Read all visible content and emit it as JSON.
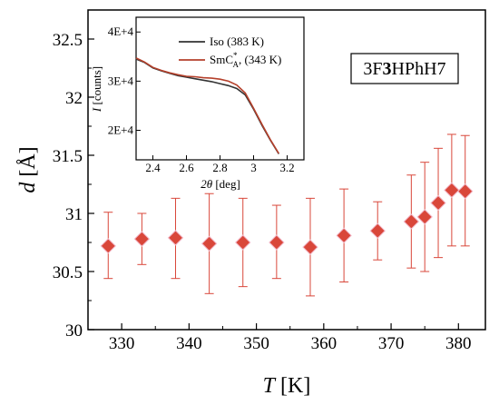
{
  "chart_data": [
    {
      "type": "scatter",
      "sample_label_prefix": "3F",
      "sample_label_bold": "3",
      "sample_label_suffix": "HPhH7",
      "xlabel_var": "T",
      "xlabel_unit": " [K]",
      "ylabel_var": "d",
      "ylabel_unit": " [Å]",
      "xlim": [
        325,
        384
      ],
      "ylim": [
        30.0,
        32.75
      ],
      "xticks": [
        "330",
        "340",
        "350",
        "360",
        "370",
        "380"
      ],
      "yticks": [
        "30",
        "30.5",
        "31",
        "31.5",
        "32",
        "32.5"
      ],
      "marker": "diamond",
      "color": "#d9473a",
      "points": [
        {
          "x": 328,
          "y": 30.72,
          "ylo": 30.44,
          "yhi": 31.01
        },
        {
          "x": 333,
          "y": 30.78,
          "ylo": 30.56,
          "yhi": 31.0
        },
        {
          "x": 338,
          "y": 30.79,
          "ylo": 30.44,
          "yhi": 31.13
        },
        {
          "x": 343,
          "y": 30.74,
          "ylo": 30.31,
          "yhi": 31.17
        },
        {
          "x": 348,
          "y": 30.75,
          "ylo": 30.37,
          "yhi": 31.13
        },
        {
          "x": 353,
          "y": 30.75,
          "ylo": 30.44,
          "yhi": 31.07
        },
        {
          "x": 358,
          "y": 30.71,
          "ylo": 30.29,
          "yhi": 31.13
        },
        {
          "x": 363,
          "y": 30.81,
          "ylo": 30.41,
          "yhi": 31.21
        },
        {
          "x": 368,
          "y": 30.85,
          "ylo": 30.6,
          "yhi": 31.1
        },
        {
          "x": 373,
          "y": 30.93,
          "ylo": 30.53,
          "yhi": 31.33
        },
        {
          "x": 375,
          "y": 30.97,
          "ylo": 30.5,
          "yhi": 31.44
        },
        {
          "x": 377,
          "y": 31.09,
          "ylo": 30.62,
          "yhi": 31.56
        },
        {
          "x": 379,
          "y": 31.2,
          "ylo": 30.72,
          "yhi": 31.68
        },
        {
          "x": 381,
          "y": 31.19,
          "ylo": 30.72,
          "yhi": 31.67
        }
      ]
    },
    {
      "type": "line",
      "inset": true,
      "xlabel_var": "2θ",
      "xlabel_unit": " [deg]",
      "ylabel_var": "I",
      "ylabel_unit": " [counts]",
      "xlim": [
        2.3,
        3.3
      ],
      "ylim": [
        14000,
        43000
      ],
      "xticks": [
        "2.4",
        "2.6",
        "2.8",
        "3",
        "3.2"
      ],
      "yticks": [
        "2E+4",
        "3E+4",
        "4E+4"
      ],
      "legend_position": "top-right",
      "series": [
        {
          "name_main": "Iso (383 K)",
          "color": "#333333",
          "x": [
            2.3,
            2.35,
            2.4,
            2.45,
            2.5,
            2.55,
            2.6,
            2.65,
            2.7,
            2.75,
            2.8,
            2.85,
            2.9,
            2.95,
            3.0,
            3.05,
            3.1,
            3.15
          ],
          "y": [
            34500,
            33800,
            32700,
            32100,
            31600,
            31100,
            30800,
            30500,
            30200,
            29900,
            29500,
            29100,
            28500,
            27200,
            24300,
            21000,
            18000,
            15200
          ]
        },
        {
          "name_main": "SmC",
          "name_sup": "*",
          "name_sub": "A",
          "name_rest": ", (343 K)",
          "color": "#b5402b",
          "x": [
            2.3,
            2.35,
            2.4,
            2.45,
            2.5,
            2.55,
            2.6,
            2.65,
            2.7,
            2.75,
            2.8,
            2.85,
            2.9,
            2.95,
            3.0,
            3.05,
            3.1,
            3.15
          ],
          "y": [
            34700,
            33900,
            32800,
            32200,
            31700,
            31300,
            31000,
            30900,
            30700,
            30600,
            30400,
            30000,
            29200,
            27600,
            24500,
            21200,
            18100,
            15300
          ]
        }
      ]
    }
  ]
}
